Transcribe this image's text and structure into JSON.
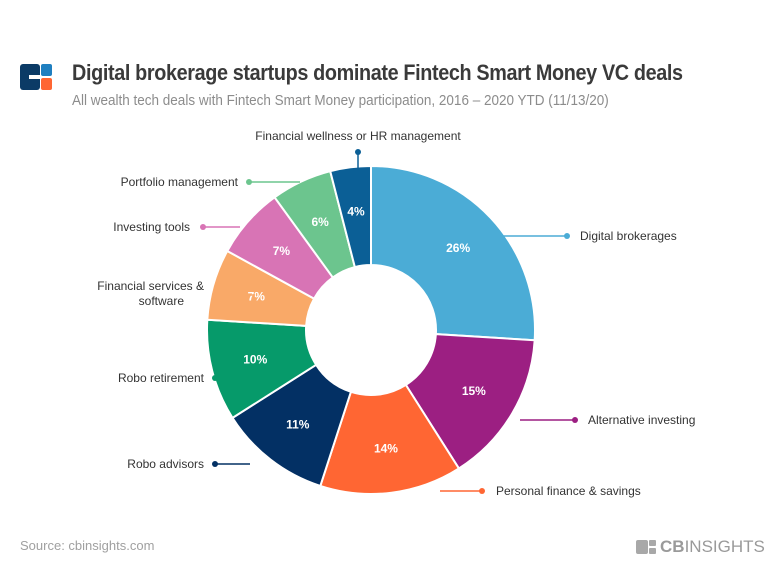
{
  "header": {
    "title": "Digital brokerage startups dominate Fintech Smart Money VC deals",
    "subtitle": "All wealth tech deals with Fintech Smart Money participation, 2016 – 2020 YTD (11/13/20)"
  },
  "footer": {
    "source": "Source: cbinsights.com",
    "brand_bold": "CB",
    "brand_light": "INSIGHTS"
  },
  "chart_data": {
    "type": "pie",
    "donut": true,
    "start": "top, clockwise",
    "unit": "%",
    "slices": [
      {
        "label": "Digital brokerages",
        "value": 26,
        "color": "#4BACD6"
      },
      {
        "label": "Alternative investing",
        "value": 15,
        "color": "#9C1F82"
      },
      {
        "label": "Personal finance & savings",
        "value": 14,
        "color": "#FF6633"
      },
      {
        "label": "Robo advisors",
        "value": 11,
        "color": "#033064"
      },
      {
        "label": "Robo retirement",
        "value": 10,
        "color": "#069A6A"
      },
      {
        "label": "Financial services & software",
        "value": 7,
        "color": "#F9A968"
      },
      {
        "label": "Investing tools",
        "value": 7,
        "color": "#D874B5"
      },
      {
        "label": "Portfolio management",
        "value": 6,
        "color": "#6CC58E"
      },
      {
        "label": "Financial wellness or HR management",
        "value": 4,
        "color": "#0B5F96"
      }
    ]
  }
}
